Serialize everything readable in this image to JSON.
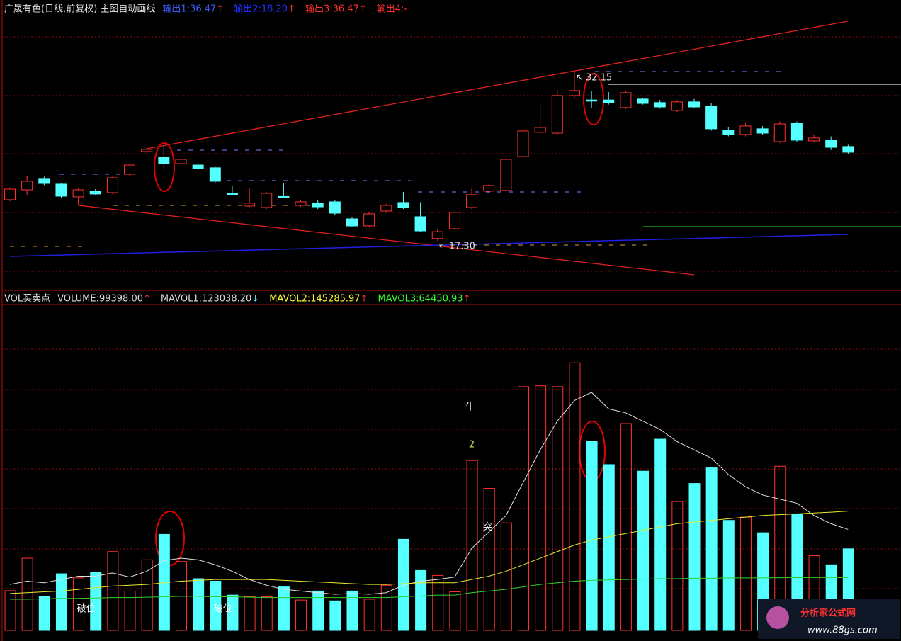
{
  "chart_data": [
    {
      "type": "candlestick",
      "title": "广晟有色(日线,前复权) 主图自动画线",
      "legend": [
        {
          "label": "输出1:36.47",
          "arrow": "↑",
          "color": "#3c5cff"
        },
        {
          "label": "输出2:18.20",
          "arrow": "↑",
          "color": "#2030ff"
        },
        {
          "label": "输出3:36.47",
          "arrow": "↑",
          "color": "#ff3030"
        },
        {
          "label": "输出4:-",
          "arrow": "",
          "color": "#ff3030"
        }
      ],
      "up_color": "#ff3232",
      "down_color": "#54ffff",
      "ylim": [
        12.93,
        37.26
      ],
      "open": [
        20.92,
        21.79,
        22.73,
        22.29,
        21.17,
        21.67,
        21.54,
        23.16,
        25.16,
        24.66,
        24.1,
        23.97,
        23.73,
        21.48,
        20.36,
        20.23,
        21.2,
        20.42,
        20.61,
        20.73,
        19.23,
        18.61,
        19.92,
        20.67,
        19.42,
        17.5,
        18.36,
        20.23,
        21.67,
        21.73,
        24.72,
        26.85,
        26.78,
        30.09,
        29.7,
        29.7,
        29.03,
        29.78,
        29.47,
        28.78,
        29.53,
        29.15,
        27.03,
        26.66,
        27.16,
        26.03,
        27.66,
        26.1,
        26.16,
        25.6
      ],
      "close": [
        21.85,
        22.54,
        22.35,
        21.23,
        21.79,
        21.42,
        22.85,
        23.97,
        25.35,
        24.1,
        24.47,
        23.66,
        22.54,
        21.36,
        20.61,
        21.48,
        21.17,
        20.73,
        20.29,
        19.73,
        18.61,
        19.67,
        20.42,
        20.23,
        18.17,
        18.1,
        19.8,
        21.36,
        22.17,
        24.47,
        26.97,
        27.28,
        30.09,
        30.53,
        29.6,
        29.45,
        30.34,
        29.4,
        29.09,
        29.53,
        29.09,
        27.16,
        26.66,
        27.41,
        26.78,
        27.59,
        26.16,
        26.35,
        25.53,
        25.1
      ],
      "high": [
        22.0,
        23.04,
        22.95,
        22.4,
        21.95,
        21.85,
        22.95,
        24.1,
        25.6,
        25.66,
        24.8,
        24.1,
        23.85,
        22.1,
        21.9,
        21.6,
        22.4,
        20.9,
        20.85,
        20.85,
        19.35,
        19.8,
        20.55,
        21.6,
        20.7,
        18.3,
        19.9,
        21.9,
        22.3,
        24.55,
        27.1,
        29.3,
        30.6,
        32.15,
        30.5,
        30.4,
        30.5,
        29.9,
        29.7,
        29.7,
        29.8,
        29.4,
        27.3,
        27.7,
        27.4,
        27.8,
        27.8,
        26.6,
        26.5,
        25.75
      ],
      "low": [
        20.8,
        21.36,
        22.2,
        21.1,
        20.42,
        21.3,
        21.4,
        23.0,
        25.0,
        23.66,
        24.0,
        23.5,
        22.4,
        21.3,
        20.25,
        20.1,
        21.05,
        20.3,
        20.1,
        19.6,
        18.5,
        18.5,
        19.8,
        20.1,
        18.05,
        17.3,
        18.25,
        20.1,
        21.55,
        21.6,
        24.6,
        26.7,
        26.6,
        29.9,
        29.0,
        29.3,
        28.9,
        29.3,
        28.95,
        28.65,
        29.0,
        27.0,
        26.5,
        26.5,
        26.6,
        25.9,
        26.0,
        26.0,
        25.3,
        24.95
      ],
      "annotations": [
        {
          "text": "32.15",
          "index": 33
        },
        {
          "text": "17.30",
          "index": 25
        }
      ]
    },
    {
      "type": "volume",
      "title": "VOL买卖点",
      "legend": [
        {
          "label": "VOLUME:99398.00",
          "arrow": "↑",
          "color": "#d8d8d8",
          "arrow_color": "#ff3030"
        },
        {
          "label": "MAVOL1:123038.20",
          "arrow": "↓",
          "color": "#d8d8d8",
          "arrow_color": "#54ffff"
        },
        {
          "label": "MAVOL2:145285.97",
          "arrow": "↑",
          "color": "#ffff30",
          "arrow_color": "#ff3030"
        },
        {
          "label": "MAVOL3:64450.93",
          "arrow": "↑",
          "color": "#30ff30",
          "arrow_color": "#ff3030"
        }
      ],
      "ylim": [
        0,
        397000
      ],
      "values": [
        48400,
        88000,
        41000,
        69000,
        64000,
        71000,
        96000,
        48000,
        86000,
        117000,
        84000,
        63000,
        60000,
        43000,
        41000,
        41000,
        53000,
        37000,
        48000,
        36000,
        48000,
        38000,
        55000,
        111000,
        73000,
        67000,
        47000,
        207000,
        173000,
        131000,
        297000,
        298000,
        297000,
        326000,
        230000,
        202000,
        252000,
        194000,
        233000,
        157000,
        179000,
        198000,
        134000,
        138000,
        119000,
        200000,
        142000,
        91000,
        80000,
        99398
      ],
      "series": [
        {
          "name": "MAVOL1",
          "color": "#e0e0e0",
          "values": [
            56000,
            60000,
            58000,
            62000,
            66000,
            66000,
            70000,
            65000,
            72000,
            85000,
            88000,
            86000,
            80000,
            72000,
            62000,
            55000,
            50000,
            48000,
            46000,
            44000,
            45000,
            44000,
            46000,
            55000,
            60000,
            62000,
            65000,
            100000,
            120000,
            140000,
            180000,
            220000,
            255000,
            280000,
            290000,
            270000,
            265000,
            255000,
            245000,
            230000,
            220000,
            210000,
            190000,
            175000,
            165000,
            160000,
            155000,
            140000,
            130000,
            123038.2
          ]
        },
        {
          "name": "MAVOL2",
          "color": "#e8e830",
          "values": [
            45000,
            46000,
            47000,
            48000,
            50000,
            52000,
            54000,
            55000,
            56000,
            58000,
            60000,
            61000,
            62000,
            62000,
            62000,
            62000,
            61000,
            60000,
            59000,
            58000,
            57000,
            56000,
            56000,
            57000,
            58000,
            58000,
            58000,
            62000,
            66000,
            72000,
            80000,
            88000,
            96000,
            104000,
            110000,
            114000,
            118000,
            122000,
            126000,
            130000,
            132000,
            134000,
            136000,
            138000,
            140000,
            141000,
            142000,
            143000,
            144000,
            145285.97
          ]
        },
        {
          "name": "MAVOL3",
          "color": "#30d030",
          "values": [
            38000,
            38000,
            38500,
            39000,
            39000,
            39500,
            40000,
            40000,
            40500,
            41000,
            41500,
            41500,
            41000,
            41000,
            40500,
            40000,
            40000,
            40000,
            40000,
            40000,
            40000,
            40000,
            40000,
            41000,
            42000,
            43000,
            43000,
            46000,
            48000,
            50000,
            53000,
            56000,
            58000,
            60000,
            61000,
            61500,
            62000,
            62500,
            63000,
            63000,
            63500,
            63500,
            64000,
            64000,
            64000,
            64200,
            64300,
            64400,
            64450,
            64450.93
          ]
        }
      ],
      "annotations": [
        {
          "text": "牛",
          "index": 27
        },
        {
          "text": "2",
          "index": 27
        },
        {
          "text": "突",
          "index": 28
        },
        {
          "text": "破位",
          "index": 4
        },
        {
          "text": "破位",
          "index": 12
        }
      ]
    }
  ],
  "watermark": {
    "name": "分析家公式网",
    "url": "www.88gs.com"
  }
}
